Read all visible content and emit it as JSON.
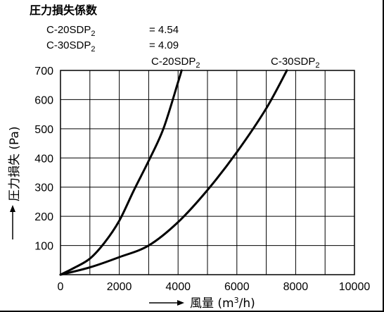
{
  "coefficients": {
    "heading": "圧力損失係数",
    "rows": [
      {
        "model": "C-20SDP",
        "sub": "2",
        "value": "= 4.54"
      },
      {
        "model": "C-30SDP",
        "sub": "2",
        "value": "= 4.09"
      }
    ]
  },
  "chart_data": {
    "type": "line",
    "xlabel": "風量 (m³/h)",
    "xlabel_parts": {
      "main": "風量 (m",
      "sup": "3",
      "end": "/h)"
    },
    "ylabel": "圧力損失 (Pa)",
    "xlim": [
      0,
      10000
    ],
    "ylim": [
      0,
      700
    ],
    "x_ticks": [
      0,
      2000,
      4000,
      6000,
      8000,
      10000
    ],
    "y_ticks": [
      100,
      200,
      300,
      400,
      500,
      600,
      700
    ],
    "x_gridlines": [
      1000,
      2000,
      3000,
      4000,
      5000,
      6000,
      7000,
      8000,
      9000,
      10000
    ],
    "y_gridlines": [
      100,
      200,
      300,
      400,
      500,
      600,
      700
    ],
    "grid": true,
    "series": [
      {
        "name": "C-20SDP2",
        "label_main": "C-20SDP",
        "label_sub": "2",
        "color": "#000000",
        "x": [
          0,
          500,
          1000,
          1500,
          2000,
          2500,
          3000,
          3500,
          4000,
          4120
        ],
        "y": [
          0,
          25,
          55,
          110,
          185,
          290,
          390,
          500,
          660,
          700
        ]
      },
      {
        "name": "C-30SDP2",
        "label_main": "C-30SDP",
        "label_sub": "2",
        "color": "#000000",
        "x": [
          0,
          1000,
          2000,
          3000,
          4000,
          5000,
          6000,
          7000,
          7700
        ],
        "y": [
          0,
          25,
          60,
          100,
          180,
          290,
          420,
          570,
          700
        ]
      }
    ]
  }
}
